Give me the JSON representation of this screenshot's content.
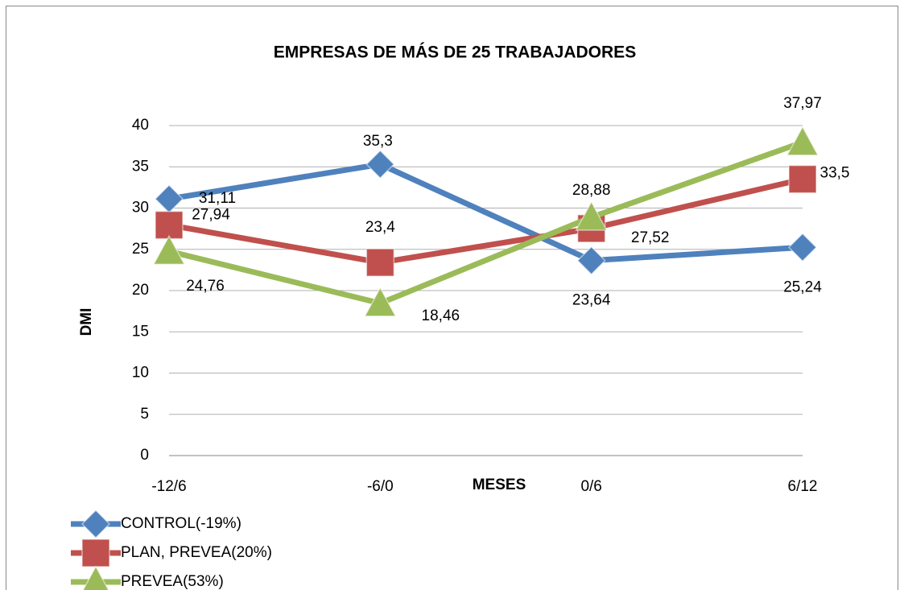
{
  "chart_data": {
    "type": "line",
    "title": "EMPRESAS DE MÁS DE 25 TRABAJADORES",
    "x_label": "MESES",
    "y_label": "DMI",
    "categories": [
      "-12/6",
      "-6/0",
      "0/6",
      "6/12"
    ],
    "series": [
      {
        "name": "CONTROL(-19%)",
        "color": "#4f81bd",
        "marker": "diamond",
        "values": [
          31.11,
          35.3,
          23.64,
          25.24
        ],
        "value_labels": [
          "31,11",
          "35,3",
          "23,64",
          "25,24"
        ]
      },
      {
        "name": "PLAN, PREVEA(20%)",
        "color": "#c0504d",
        "marker": "square",
        "values": [
          27.94,
          23.4,
          27.52,
          33.5
        ],
        "value_labels": [
          "27,94",
          "23,4",
          "27,52",
          "33,5"
        ]
      },
      {
        "name": "PREVEA(53%)",
        "color": "#9bbb59",
        "marker": "triangle",
        "values": [
          24.76,
          18.46,
          28.88,
          37.97
        ],
        "value_labels": [
          "24,76",
          "18,46",
          "28,88",
          "37,97"
        ]
      }
    ],
    "ylim": [
      0,
      40
    ],
    "yticks": [
      0,
      5,
      10,
      15,
      20,
      25,
      30,
      35,
      40
    ],
    "grid": true,
    "legend": "bottom-left"
  }
}
